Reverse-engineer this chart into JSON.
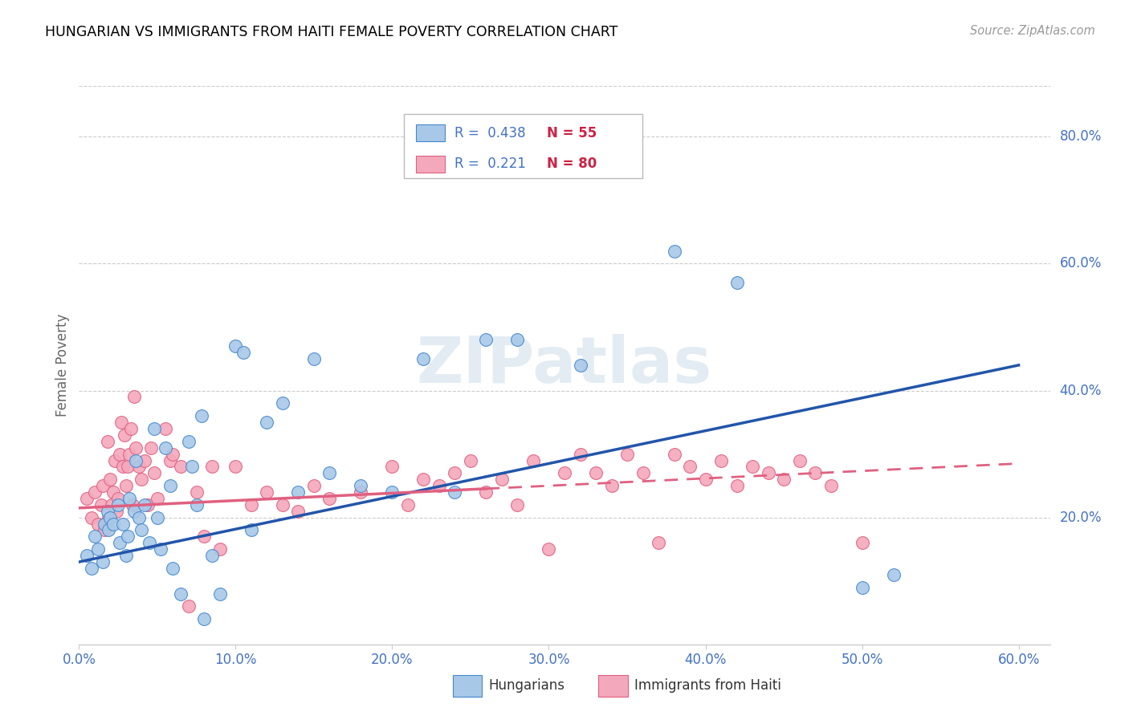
{
  "title": "HUNGARIAN VS IMMIGRANTS FROM HAITI FEMALE POVERTY CORRELATION CHART",
  "source": "Source: ZipAtlas.com",
  "ylabel": "Female Poverty",
  "watermark": "ZIPatlas",
  "legend_blue_r": "R = 0.438",
  "legend_blue_n": "N = 55",
  "legend_pink_r": "R = 0.221",
  "legend_pink_n": "N = 80",
  "blue_color": "#a8c8e8",
  "blue_edge_color": "#4488cc",
  "blue_line_color": "#2255aa",
  "pink_color": "#f4a8bc",
  "pink_edge_color": "#e06080",
  "pink_line_color": "#e06080",
  "text_color": "#4472c4",
  "axis_label_color": "#4472c4",
  "grid_color": "#cccccc",
  "blue_scatter": [
    [
      0.005,
      0.14
    ],
    [
      0.008,
      0.12
    ],
    [
      0.01,
      0.17
    ],
    [
      0.012,
      0.15
    ],
    [
      0.015,
      0.13
    ],
    [
      0.016,
      0.19
    ],
    [
      0.018,
      0.21
    ],
    [
      0.019,
      0.18
    ],
    [
      0.02,
      0.2
    ],
    [
      0.022,
      0.19
    ],
    [
      0.025,
      0.22
    ],
    [
      0.026,
      0.16
    ],
    [
      0.028,
      0.19
    ],
    [
      0.03,
      0.14
    ],
    [
      0.031,
      0.17
    ],
    [
      0.032,
      0.23
    ],
    [
      0.035,
      0.21
    ],
    [
      0.036,
      0.29
    ],
    [
      0.038,
      0.2
    ],
    [
      0.04,
      0.18
    ],
    [
      0.042,
      0.22
    ],
    [
      0.045,
      0.16
    ],
    [
      0.048,
      0.34
    ],
    [
      0.05,
      0.2
    ],
    [
      0.052,
      0.15
    ],
    [
      0.055,
      0.31
    ],
    [
      0.058,
      0.25
    ],
    [
      0.06,
      0.12
    ],
    [
      0.065,
      0.08
    ],
    [
      0.07,
      0.32
    ],
    [
      0.072,
      0.28
    ],
    [
      0.075,
      0.22
    ],
    [
      0.078,
      0.36
    ],
    [
      0.08,
      0.04
    ],
    [
      0.085,
      0.14
    ],
    [
      0.09,
      0.08
    ],
    [
      0.1,
      0.47
    ],
    [
      0.105,
      0.46
    ],
    [
      0.11,
      0.18
    ],
    [
      0.12,
      0.35
    ],
    [
      0.13,
      0.38
    ],
    [
      0.14,
      0.24
    ],
    [
      0.15,
      0.45
    ],
    [
      0.16,
      0.27
    ],
    [
      0.18,
      0.25
    ],
    [
      0.2,
      0.24
    ],
    [
      0.22,
      0.45
    ],
    [
      0.24,
      0.24
    ],
    [
      0.26,
      0.48
    ],
    [
      0.28,
      0.48
    ],
    [
      0.32,
      0.44
    ],
    [
      0.38,
      0.62
    ],
    [
      0.42,
      0.57
    ],
    [
      0.5,
      0.09
    ],
    [
      0.52,
      0.11
    ]
  ],
  "pink_scatter": [
    [
      0.005,
      0.23
    ],
    [
      0.008,
      0.2
    ],
    [
      0.01,
      0.24
    ],
    [
      0.012,
      0.19
    ],
    [
      0.014,
      0.22
    ],
    [
      0.015,
      0.25
    ],
    [
      0.016,
      0.18
    ],
    [
      0.018,
      0.32
    ],
    [
      0.019,
      0.2
    ],
    [
      0.02,
      0.26
    ],
    [
      0.021,
      0.22
    ],
    [
      0.022,
      0.24
    ],
    [
      0.023,
      0.29
    ],
    [
      0.024,
      0.21
    ],
    [
      0.025,
      0.23
    ],
    [
      0.026,
      0.3
    ],
    [
      0.027,
      0.35
    ],
    [
      0.028,
      0.28
    ],
    [
      0.029,
      0.33
    ],
    [
      0.03,
      0.25
    ],
    [
      0.031,
      0.28
    ],
    [
      0.032,
      0.3
    ],
    [
      0.033,
      0.34
    ],
    [
      0.034,
      0.22
    ],
    [
      0.035,
      0.39
    ],
    [
      0.036,
      0.31
    ],
    [
      0.038,
      0.28
    ],
    [
      0.04,
      0.26
    ],
    [
      0.042,
      0.29
    ],
    [
      0.044,
      0.22
    ],
    [
      0.046,
      0.31
    ],
    [
      0.048,
      0.27
    ],
    [
      0.05,
      0.23
    ],
    [
      0.055,
      0.34
    ],
    [
      0.058,
      0.29
    ],
    [
      0.06,
      0.3
    ],
    [
      0.065,
      0.28
    ],
    [
      0.07,
      0.06
    ],
    [
      0.075,
      0.24
    ],
    [
      0.08,
      0.17
    ],
    [
      0.085,
      0.28
    ],
    [
      0.09,
      0.15
    ],
    [
      0.1,
      0.28
    ],
    [
      0.11,
      0.22
    ],
    [
      0.12,
      0.24
    ],
    [
      0.13,
      0.22
    ],
    [
      0.14,
      0.21
    ],
    [
      0.15,
      0.25
    ],
    [
      0.16,
      0.23
    ],
    [
      0.18,
      0.24
    ],
    [
      0.2,
      0.28
    ],
    [
      0.21,
      0.22
    ],
    [
      0.22,
      0.26
    ],
    [
      0.23,
      0.25
    ],
    [
      0.24,
      0.27
    ],
    [
      0.25,
      0.29
    ],
    [
      0.26,
      0.24
    ],
    [
      0.27,
      0.26
    ],
    [
      0.28,
      0.22
    ],
    [
      0.29,
      0.29
    ],
    [
      0.3,
      0.15
    ],
    [
      0.31,
      0.27
    ],
    [
      0.32,
      0.3
    ],
    [
      0.33,
      0.27
    ],
    [
      0.34,
      0.25
    ],
    [
      0.35,
      0.3
    ],
    [
      0.36,
      0.27
    ],
    [
      0.37,
      0.16
    ],
    [
      0.38,
      0.3
    ],
    [
      0.39,
      0.28
    ],
    [
      0.4,
      0.26
    ],
    [
      0.41,
      0.29
    ],
    [
      0.42,
      0.25
    ],
    [
      0.43,
      0.28
    ],
    [
      0.44,
      0.27
    ],
    [
      0.45,
      0.26
    ],
    [
      0.46,
      0.29
    ],
    [
      0.47,
      0.27
    ],
    [
      0.48,
      0.25
    ],
    [
      0.5,
      0.16
    ]
  ],
  "xlim": [
    0.0,
    0.62
  ],
  "ylim": [
    0.0,
    0.88
  ],
  "xticks": [
    0.0,
    0.1,
    0.2,
    0.3,
    0.4,
    0.5,
    0.6
  ],
  "yticks_right": [
    0.2,
    0.4,
    0.6,
    0.8
  ],
  "blue_line_x": [
    0.0,
    0.6
  ],
  "blue_line_y": [
    0.13,
    0.44
  ],
  "pink_line_x": [
    0.0,
    0.6
  ],
  "pink_line_y": [
    0.215,
    0.285
  ],
  "pink_line_solid_end": 0.26
}
